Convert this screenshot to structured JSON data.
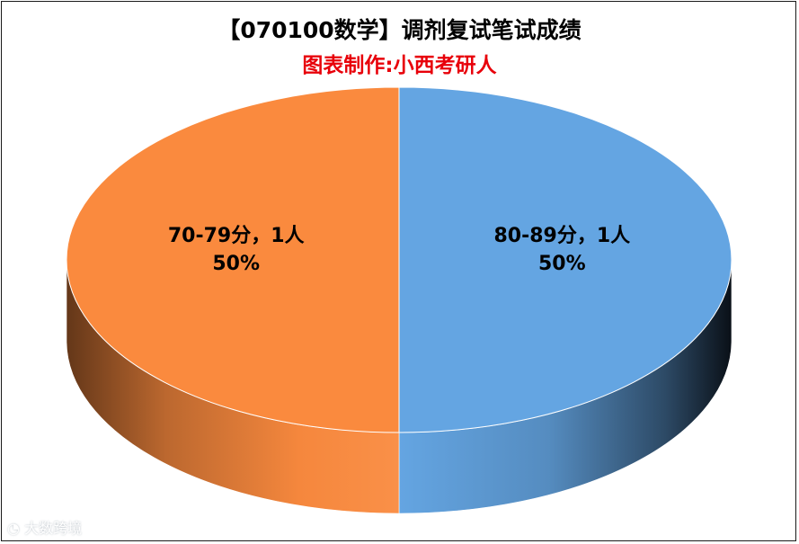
{
  "chart_data": {
    "type": "pie",
    "title": "【070100数学】调剂复试笔试成绩",
    "subtitle": "图表制作:小西考研人",
    "categories": [
      "80-89分，1人",
      "70-79分，1人"
    ],
    "values": [
      1,
      1
    ],
    "percent_labels": [
      "50%",
      "50%"
    ],
    "colors": [
      "#64a5e2",
      "#fa8a3e"
    ],
    "start_angle_deg": 90,
    "direction": "clockwise",
    "style": "3d",
    "legend": "none"
  },
  "colors": {
    "subtitle": "#e8000a",
    "title": "#000000"
  },
  "watermark": "大数跨境"
}
